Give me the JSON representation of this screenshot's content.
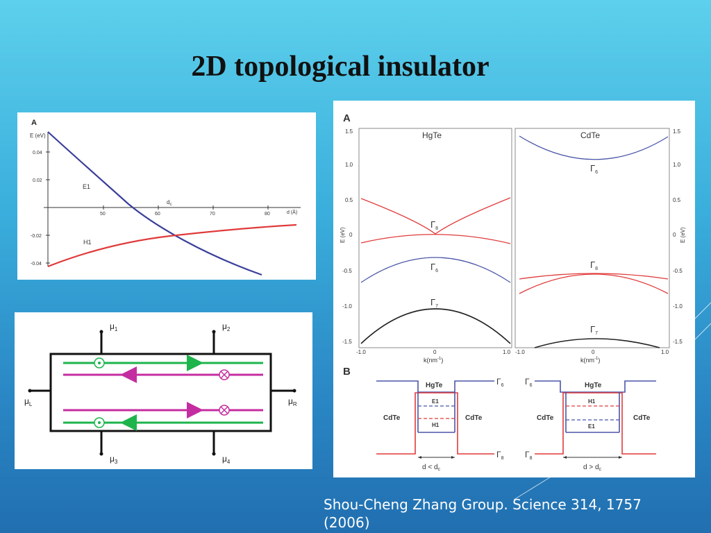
{
  "slide": {
    "title": "2D topological insulator",
    "citation": "Shou-Cheng Zhang Group. Science 314, 1757 (2006)"
  },
  "panel_left_top": {
    "panel_letter": "A",
    "y_axis_label": "E (eV)",
    "x_axis_label": "d (Å)",
    "critical_label": "d",
    "critical_sub": "c",
    "y_ticks": [
      "0.04",
      "0.02",
      "-0.02",
      "-0.04"
    ],
    "x_ticks": [
      "50",
      "60",
      "70",
      "80"
    ],
    "curve_labels": {
      "e1": "E1",
      "h1": "H1"
    },
    "colors": {
      "e1": "#3a3f9a",
      "h1": "#e03a3a"
    }
  },
  "panel_bottom_left": {
    "mu1": "μ",
    "mu1_sub": "1",
    "mu2": "μ",
    "mu2_sub": "2",
    "mu3": "μ",
    "mu3_sub": "3",
    "mu4": "μ",
    "mu4_sub": "4",
    "muL": "μ",
    "muL_sub": "L",
    "muR": "μ",
    "muR_sub": "R",
    "colors": {
      "green": "#1db44c",
      "magenta": "#c42da0"
    }
  },
  "panel_right": {
    "letter_a": "A",
    "letter_b": "B",
    "hgte_title": "HgTe",
    "cdte_title": "CdTe",
    "y_label": "E (eV)",
    "x_label": "k(nm",
    "x_label_sup": "-1",
    "left_y_ticks": [
      "1.5",
      "1.0",
      "0.5",
      "0",
      "-0.5",
      "-1.0",
      "-1.5"
    ],
    "right_y_ticks": [
      "1.5",
      "1.0",
      "0.5",
      "0",
      "-0.5",
      "-1.0",
      "-1.5"
    ],
    "x_ticks_hgte": [
      "-1.0",
      "0",
      "1.0"
    ],
    "x_ticks_cdte": [
      "-1.0",
      "0",
      "1.0"
    ],
    "gamma": "Γ",
    "gamma_subs": {
      "g8": "8",
      "g6": "6",
      "g7": "7"
    },
    "well_left": {
      "center": "HgTe",
      "left": "CdTe",
      "right": "CdTe",
      "e1": "E1",
      "h1": "H1",
      "condition": "d < d",
      "condition_sub": "c"
    },
    "well_right": {
      "center": "HgTe",
      "left": "CdTe",
      "right": "CdTe",
      "h1": "H1",
      "e1": "E1",
      "condition": "d > d",
      "condition_sub": "c"
    },
    "colors": {
      "red": "#e03a3a",
      "blue": "#4a55a8",
      "black": "#222222"
    }
  }
}
